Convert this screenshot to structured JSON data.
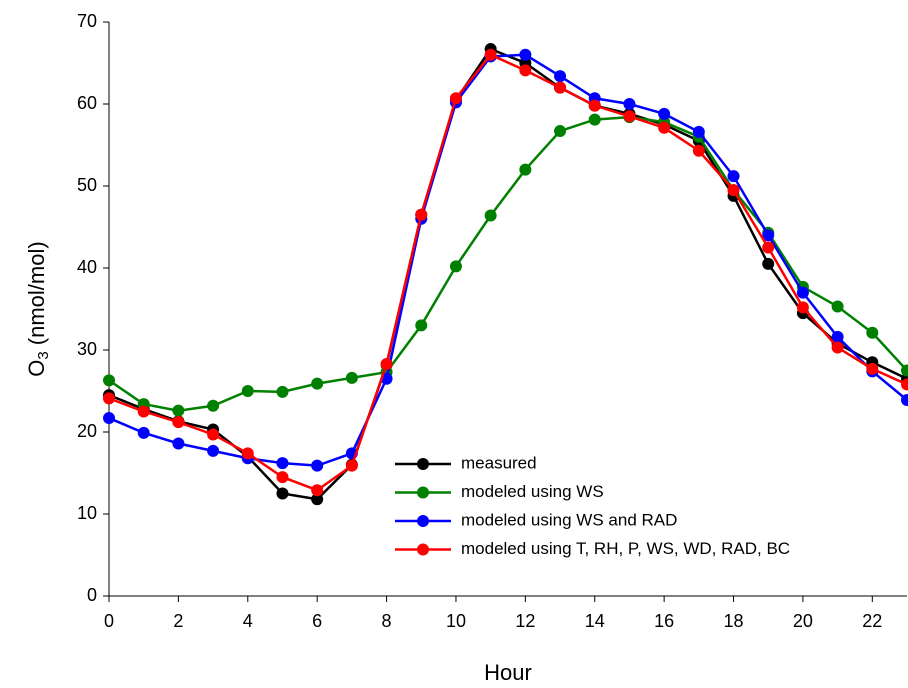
{
  "chart_data": {
    "type": "line",
    "x_label": "Hour",
    "y_label": {
      "main": "O",
      "sub": "3",
      "rest": "(nmol/mol)"
    },
    "x": [
      0,
      1,
      2,
      3,
      4,
      5,
      6,
      7,
      8,
      9,
      10,
      11,
      12,
      13,
      14,
      15,
      16,
      17,
      18,
      19,
      20,
      21,
      22,
      23
    ],
    "xlim": [
      0,
      23
    ],
    "xticks": [
      0,
      2,
      4,
      6,
      8,
      10,
      12,
      14,
      16,
      18,
      20,
      22
    ],
    "ylim": [
      0,
      70
    ],
    "yticks": [
      0,
      10,
      20,
      30,
      40,
      50,
      60,
      70
    ],
    "legend": "lower center",
    "series": [
      {
        "name": "measured",
        "color": "#000000",
        "values": [
          24.5,
          22.8,
          21.3,
          20.3,
          17.0,
          12.5,
          11.8,
          16.0,
          28.2,
          46.5,
          60.5,
          66.7,
          65.0,
          62.0,
          59.8,
          58.8,
          57.5,
          55.5,
          48.8,
          40.5,
          34.5,
          30.8,
          28.5,
          26.5
        ]
      },
      {
        "name": "modeled using WS",
        "color": "#008000",
        "values": [
          26.3,
          23.4,
          22.6,
          23.2,
          25.0,
          24.9,
          25.9,
          26.6,
          27.3,
          33.0,
          40.2,
          46.4,
          52.0,
          56.7,
          58.1,
          58.4,
          57.8,
          56.0,
          49.5,
          44.3,
          37.7,
          35.3,
          32.1,
          27.5
        ]
      },
      {
        "name": "modeled using WS and RAD",
        "color": "#0000ff",
        "values": [
          21.7,
          19.9,
          18.6,
          17.7,
          16.8,
          16.2,
          15.9,
          17.4,
          26.5,
          46.0,
          60.2,
          65.8,
          66.0,
          63.4,
          60.7,
          60.0,
          58.8,
          56.6,
          51.2,
          44.0,
          37.0,
          31.6,
          27.4,
          23.9
        ]
      },
      {
        "name": "modeled using T, RH, P, WS, WD, RAD, BC",
        "color": "#ff0000",
        "values": [
          24.1,
          22.5,
          21.2,
          19.7,
          17.4,
          14.5,
          12.9,
          15.9,
          28.3,
          46.5,
          60.7,
          66.0,
          64.1,
          62.0,
          59.8,
          58.5,
          57.1,
          54.3,
          49.5,
          42.5,
          35.2,
          30.3,
          27.7,
          25.8
        ]
      }
    ]
  }
}
